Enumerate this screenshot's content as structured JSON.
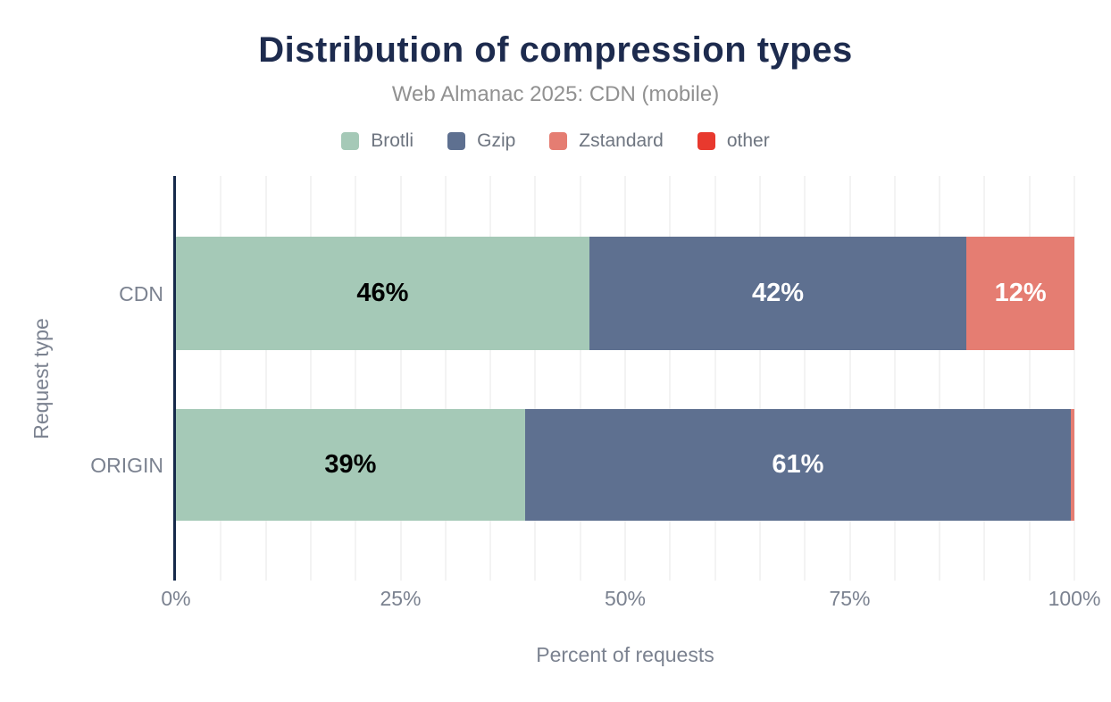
{
  "chart_data": {
    "type": "bar",
    "orientation": "horizontal",
    "stacked": true,
    "title": "Distribution of compression types",
    "subtitle": "Web Almanac 2025: CDN (mobile)",
    "categories": [
      "CDN",
      "ORIGIN"
    ],
    "series": [
      {
        "name": "Brotli",
        "color": "#a5c9b7",
        "values": [
          46,
          39
        ],
        "labels": [
          "46%",
          "39%"
        ],
        "label_color": "#000000"
      },
      {
        "name": "Gzip",
        "color": "#5e7090",
        "values": [
          42,
          61
        ],
        "labels": [
          "42%",
          "61%"
        ],
        "label_color": "#ffffff"
      },
      {
        "name": "Zstandard",
        "color": "#e57d72",
        "values": [
          12,
          0.4
        ],
        "labels": [
          "12%",
          ""
        ],
        "label_color": "#ffffff"
      },
      {
        "name": "other",
        "color": "#e8392e",
        "values": [
          0,
          0
        ],
        "labels": [
          "",
          ""
        ],
        "label_color": "#ffffff"
      }
    ],
    "xlabel": "Percent of requests",
    "ylabel": "Request type",
    "x_ticks": [
      {
        "value": 0,
        "label": "0%"
      },
      {
        "value": 25,
        "label": "25%"
      },
      {
        "value": 50,
        "label": "50%"
      },
      {
        "value": 75,
        "label": "75%"
      },
      {
        "value": 100,
        "label": "100%"
      }
    ],
    "xlim": [
      0,
      100
    ],
    "gridline_step_percent": 5,
    "grid": "vertical",
    "legend_position": "top"
  },
  "colors": {
    "background": "#ffffff",
    "title_color": "#1d2b4e",
    "subtitle_color": "#919191",
    "axis_line": "#16294a",
    "gridline_color": "#f3f3f3",
    "axis_text": "#7b8290",
    "legend_text": "#6e7580"
  }
}
